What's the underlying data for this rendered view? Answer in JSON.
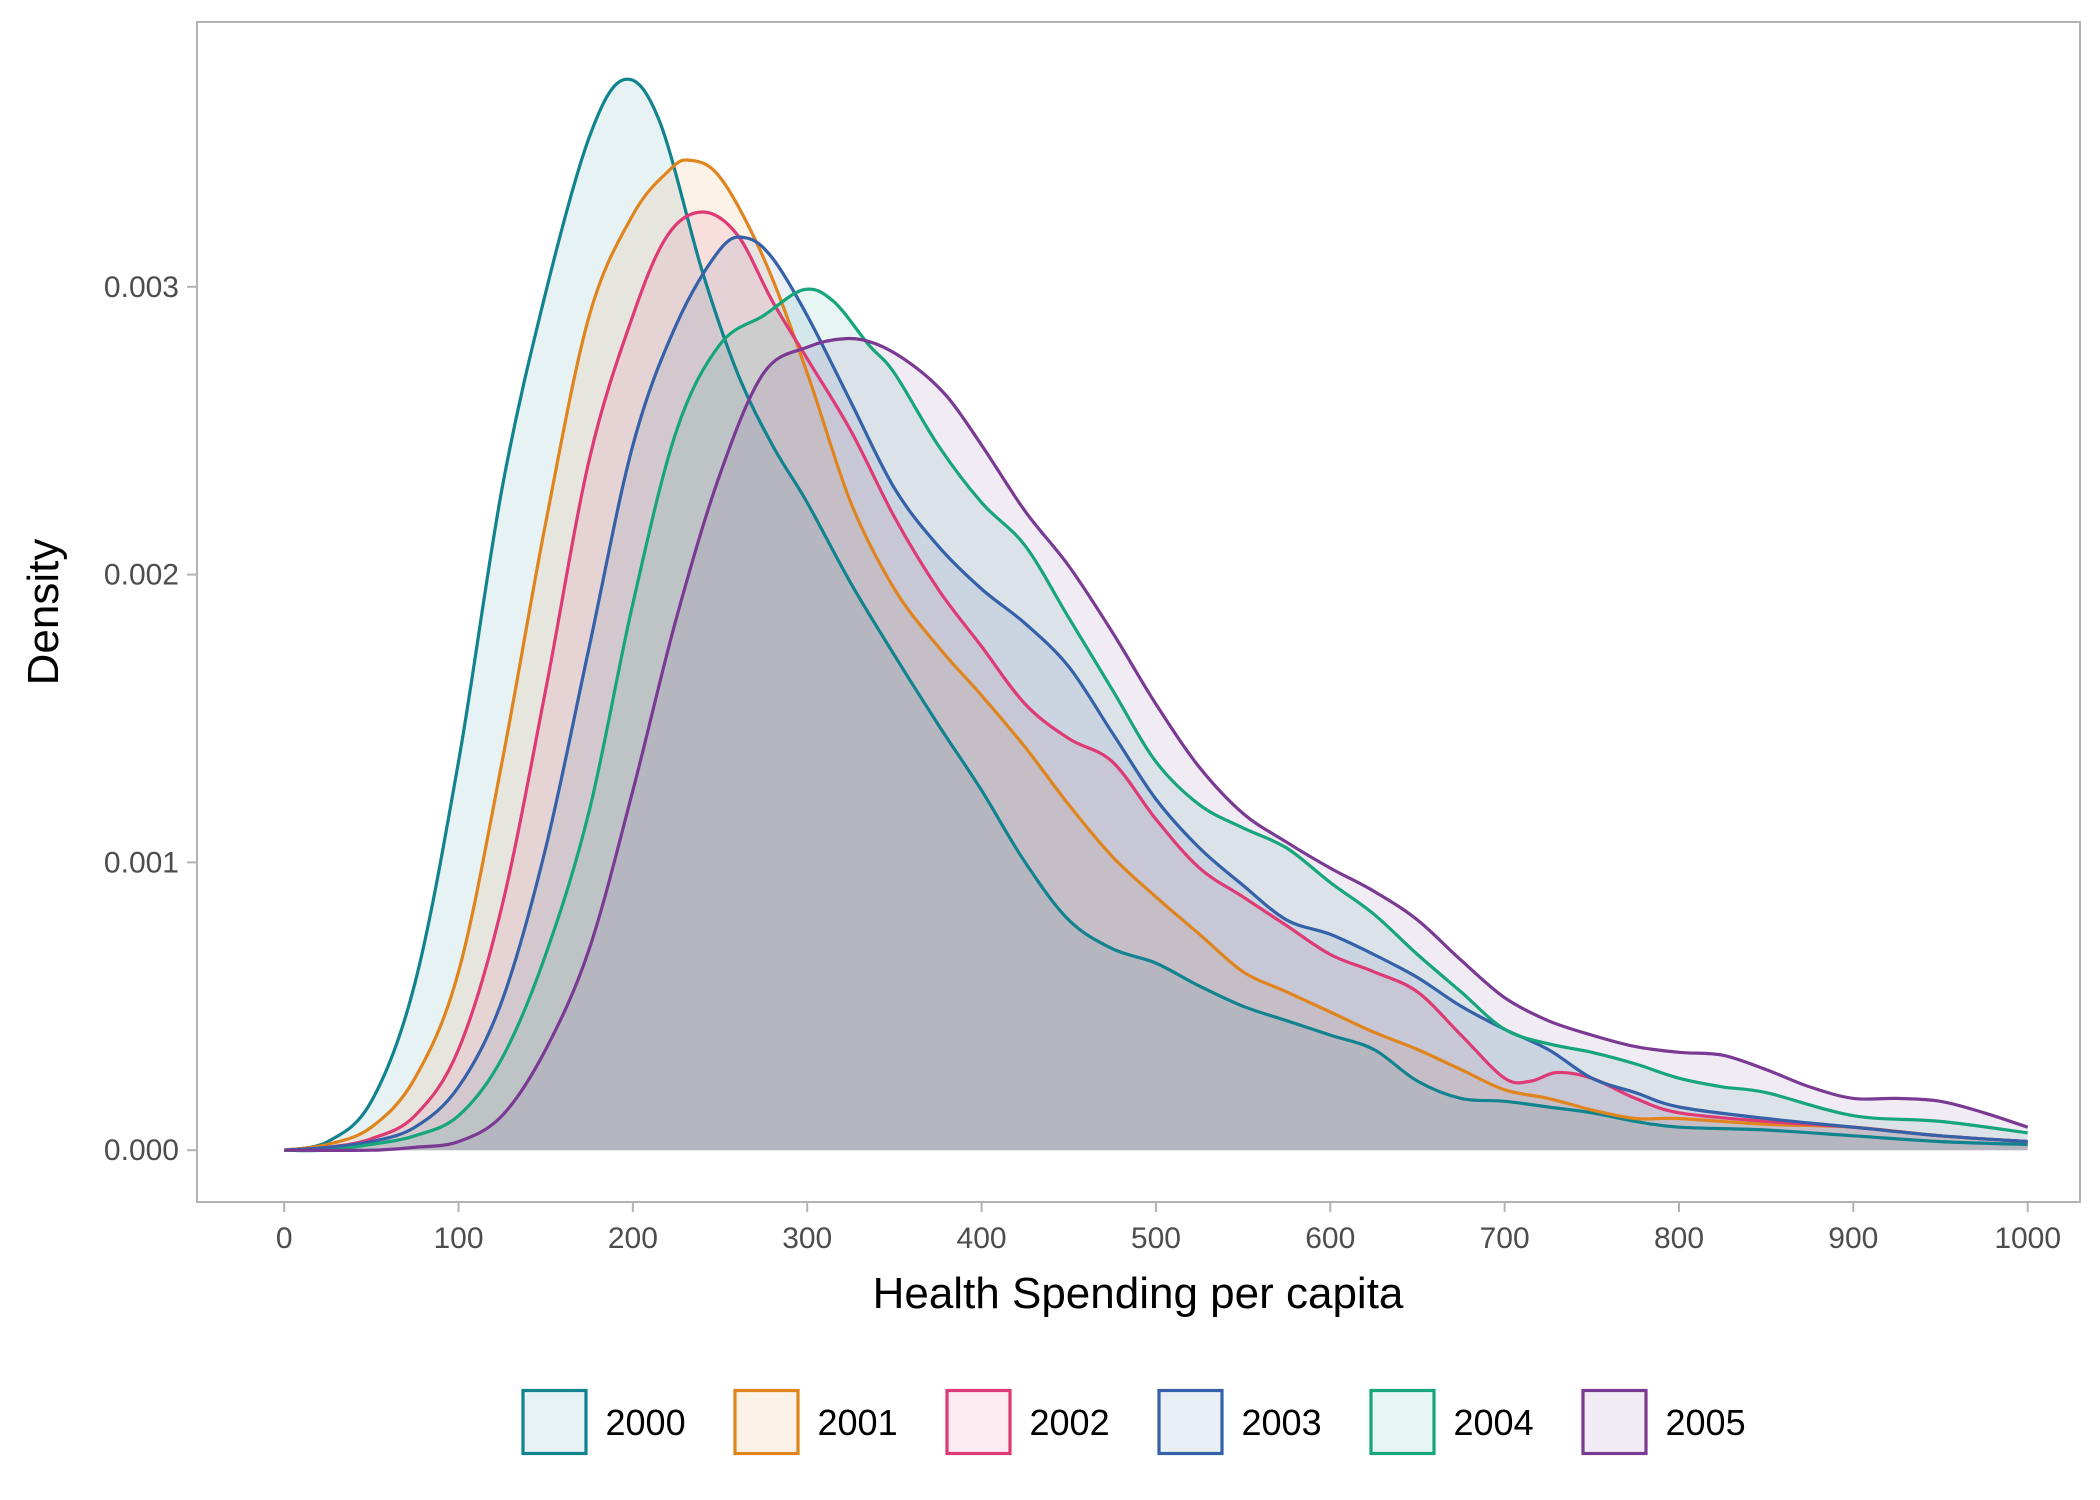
{
  "chart_data": {
    "type": "area",
    "subtype": "density",
    "title": "",
    "xlabel": "Health Spending per capita",
    "ylabel": "Density",
    "xlim": [
      -50,
      1030
    ],
    "ylim": [
      -0.00018,
      0.00392
    ],
    "x_ticks": [
      0,
      100,
      200,
      300,
      400,
      500,
      600,
      700,
      800,
      900,
      1000
    ],
    "x_tick_labels": [
      "0",
      "100",
      "200",
      "300",
      "400",
      "500",
      "600",
      "700",
      "800",
      "900",
      "1000"
    ],
    "y_ticks": [
      0,
      0.001,
      0.002,
      0.003
    ],
    "y_tick_labels": [
      "0.000",
      "0.001",
      "0.002",
      "0.003"
    ],
    "grid": false,
    "legend_position": "bottom",
    "fill_opacity": 0.1,
    "series": [
      {
        "name": "2000",
        "color": "#11838f",
        "points": [
          [
            0,
            0
          ],
          [
            25,
            3e-05
          ],
          [
            50,
            0.00017
          ],
          [
            75,
            0.00058
          ],
          [
            100,
            0.00135
          ],
          [
            125,
            0.0023
          ],
          [
            150,
            0.00298
          ],
          [
            175,
            0.00352
          ],
          [
            195,
            0.00372
          ],
          [
            215,
            0.00358
          ],
          [
            240,
            0.00305
          ],
          [
            260,
            0.0027
          ],
          [
            280,
            0.00245
          ],
          [
            300,
            0.00225
          ],
          [
            325,
            0.00197
          ],
          [
            350,
            0.00172
          ],
          [
            375,
            0.00148
          ],
          [
            400,
            0.00125
          ],
          [
            425,
            0.001
          ],
          [
            450,
            0.0008
          ],
          [
            475,
            0.0007
          ],
          [
            500,
            0.00065
          ],
          [
            525,
            0.00057
          ],
          [
            550,
            0.0005
          ],
          [
            575,
            0.00045
          ],
          [
            600,
            0.0004
          ],
          [
            625,
            0.00035
          ],
          [
            650,
            0.00024
          ],
          [
            675,
            0.00018
          ],
          [
            700,
            0.00017
          ],
          [
            725,
            0.00015
          ],
          [
            750,
            0.00013
          ],
          [
            775,
            0.0001
          ],
          [
            800,
            8e-05
          ],
          [
            850,
            7e-05
          ],
          [
            900,
            5e-05
          ],
          [
            950,
            3e-05
          ],
          [
            1000,
            2e-05
          ]
        ]
      },
      {
        "name": "2001",
        "color": "#e0841e",
        "points": [
          [
            0,
            0
          ],
          [
            25,
            2e-05
          ],
          [
            50,
            8e-05
          ],
          [
            75,
            0.00025
          ],
          [
            100,
            0.00062
          ],
          [
            125,
            0.00135
          ],
          [
            150,
            0.00218
          ],
          [
            175,
            0.0029
          ],
          [
            200,
            0.00325
          ],
          [
            220,
            0.0034
          ],
          [
            232,
            0.00344
          ],
          [
            250,
            0.00338
          ],
          [
            275,
            0.0031
          ],
          [
            300,
            0.0027
          ],
          [
            325,
            0.00225
          ],
          [
            350,
            0.00195
          ],
          [
            375,
            0.00175
          ],
          [
            400,
            0.00158
          ],
          [
            425,
            0.0014
          ],
          [
            450,
            0.0012
          ],
          [
            475,
            0.00102
          ],
          [
            500,
            0.00088
          ],
          [
            525,
            0.00075
          ],
          [
            550,
            0.00062
          ],
          [
            575,
            0.00055
          ],
          [
            600,
            0.00048
          ],
          [
            625,
            0.00041
          ],
          [
            650,
            0.00035
          ],
          [
            675,
            0.00028
          ],
          [
            700,
            0.00021
          ],
          [
            725,
            0.00018
          ],
          [
            750,
            0.00014
          ],
          [
            775,
            0.00011
          ],
          [
            800,
            0.00011
          ],
          [
            850,
            9e-05
          ],
          [
            900,
            8e-05
          ],
          [
            950,
            5e-05
          ],
          [
            1000,
            3e-05
          ]
        ]
      },
      {
        "name": "2002",
        "color": "#de3a75",
        "points": [
          [
            0,
            0
          ],
          [
            25,
            1e-05
          ],
          [
            50,
            4e-05
          ],
          [
            75,
            0.00012
          ],
          [
            100,
            0.00035
          ],
          [
            125,
            0.00085
          ],
          [
            150,
            0.0016
          ],
          [
            175,
            0.0024
          ],
          [
            200,
            0.0029
          ],
          [
            220,
            0.00318
          ],
          [
            240,
            0.00326
          ],
          [
            260,
            0.00318
          ],
          [
            280,
            0.00295
          ],
          [
            300,
            0.00275
          ],
          [
            325,
            0.0025
          ],
          [
            350,
            0.0022
          ],
          [
            375,
            0.00195
          ],
          [
            400,
            0.00175
          ],
          [
            425,
            0.00155
          ],
          [
            450,
            0.00143
          ],
          [
            475,
            0.00135
          ],
          [
            500,
            0.00115
          ],
          [
            525,
            0.00098
          ],
          [
            550,
            0.00088
          ],
          [
            575,
            0.00078
          ],
          [
            600,
            0.00068
          ],
          [
            625,
            0.00062
          ],
          [
            650,
            0.00055
          ],
          [
            675,
            0.0004
          ],
          [
            700,
            0.00025
          ],
          [
            715,
            0.00024
          ],
          [
            730,
            0.00027
          ],
          [
            750,
            0.00025
          ],
          [
            775,
            0.00018
          ],
          [
            800,
            0.00013
          ],
          [
            850,
            0.0001
          ],
          [
            900,
            8e-05
          ],
          [
            950,
            5e-05
          ],
          [
            1000,
            3e-05
          ]
        ]
      },
      {
        "name": "2003",
        "color": "#3461a8",
        "points": [
          [
            0,
            0
          ],
          [
            25,
            1e-05
          ],
          [
            50,
            3e-05
          ],
          [
            75,
            8e-05
          ],
          [
            100,
            0.00022
          ],
          [
            125,
            0.00052
          ],
          [
            150,
            0.00105
          ],
          [
            175,
            0.00175
          ],
          [
            200,
            0.00245
          ],
          [
            225,
            0.00287
          ],
          [
            250,
            0.00313
          ],
          [
            265,
            0.00317
          ],
          [
            280,
            0.0031
          ],
          [
            300,
            0.0029
          ],
          [
            325,
            0.0026
          ],
          [
            350,
            0.0023
          ],
          [
            375,
            0.0021
          ],
          [
            400,
            0.00195
          ],
          [
            425,
            0.00183
          ],
          [
            450,
            0.00168
          ],
          [
            475,
            0.00145
          ],
          [
            500,
            0.00122
          ],
          [
            525,
            0.00105
          ],
          [
            550,
            0.00092
          ],
          [
            575,
            0.0008
          ],
          [
            600,
            0.00075
          ],
          [
            625,
            0.00068
          ],
          [
            650,
            0.0006
          ],
          [
            675,
            0.0005
          ],
          [
            700,
            0.00042
          ],
          [
            725,
            0.00035
          ],
          [
            750,
            0.00025
          ],
          [
            775,
            0.0002
          ],
          [
            800,
            0.00015
          ],
          [
            850,
            0.00011
          ],
          [
            900,
            8e-05
          ],
          [
            950,
            5e-05
          ],
          [
            1000,
            3e-05
          ]
        ]
      },
      {
        "name": "2004",
        "color": "#17a57b",
        "points": [
          [
            0,
            0
          ],
          [
            25,
            0
          ],
          [
            50,
            2e-05
          ],
          [
            75,
            5e-05
          ],
          [
            100,
            0.00012
          ],
          [
            125,
            0.00032
          ],
          [
            150,
            0.00068
          ],
          [
            175,
            0.00118
          ],
          [
            200,
            0.0019
          ],
          [
            225,
            0.0025
          ],
          [
            250,
            0.0028
          ],
          [
            275,
            0.0029
          ],
          [
            298,
            0.00299
          ],
          [
            315,
            0.00295
          ],
          [
            335,
            0.0028
          ],
          [
            350,
            0.0027
          ],
          [
            375,
            0.00245
          ],
          [
            400,
            0.00225
          ],
          [
            425,
            0.0021
          ],
          [
            450,
            0.00185
          ],
          [
            475,
            0.0016
          ],
          [
            500,
            0.00135
          ],
          [
            525,
            0.0012
          ],
          [
            550,
            0.00112
          ],
          [
            575,
            0.00105
          ],
          [
            600,
            0.00093
          ],
          [
            625,
            0.00082
          ],
          [
            650,
            0.00068
          ],
          [
            675,
            0.00055
          ],
          [
            700,
            0.00042
          ],
          [
            725,
            0.00037
          ],
          [
            750,
            0.00034
          ],
          [
            775,
            0.0003
          ],
          [
            800,
            0.00025
          ],
          [
            825,
            0.00022
          ],
          [
            850,
            0.0002
          ],
          [
            900,
            0.00012
          ],
          [
            950,
            0.0001
          ],
          [
            1000,
            6e-05
          ]
        ]
      },
      {
        "name": "2005",
        "color": "#7a3a93",
        "points": [
          [
            0,
            0
          ],
          [
            50,
            0
          ],
          [
            75,
            1e-05
          ],
          [
            100,
            3e-05
          ],
          [
            125,
            0.00012
          ],
          [
            150,
            0.00035
          ],
          [
            175,
            0.0007
          ],
          [
            200,
            0.00125
          ],
          [
            225,
            0.00185
          ],
          [
            250,
            0.00235
          ],
          [
            275,
            0.0027
          ],
          [
            300,
            0.00279
          ],
          [
            322,
            0.00282
          ],
          [
            340,
            0.0028
          ],
          [
            360,
            0.00273
          ],
          [
            380,
            0.00262
          ],
          [
            400,
            0.00245
          ],
          [
            425,
            0.00222
          ],
          [
            450,
            0.00203
          ],
          [
            475,
            0.0018
          ],
          [
            500,
            0.00155
          ],
          [
            525,
            0.00133
          ],
          [
            550,
            0.00117
          ],
          [
            575,
            0.00107
          ],
          [
            600,
            0.00098
          ],
          [
            625,
            0.0009
          ],
          [
            650,
            0.0008
          ],
          [
            675,
            0.00066
          ],
          [
            700,
            0.00053
          ],
          [
            725,
            0.00045
          ],
          [
            750,
            0.0004
          ],
          [
            775,
            0.00036
          ],
          [
            800,
            0.00034
          ],
          [
            825,
            0.00033
          ],
          [
            850,
            0.00028
          ],
          [
            875,
            0.00022
          ],
          [
            900,
            0.00018
          ],
          [
            925,
            0.00018
          ],
          [
            950,
            0.00017
          ],
          [
            975,
            0.00013
          ],
          [
            1000,
            8e-05
          ]
        ]
      }
    ]
  }
}
